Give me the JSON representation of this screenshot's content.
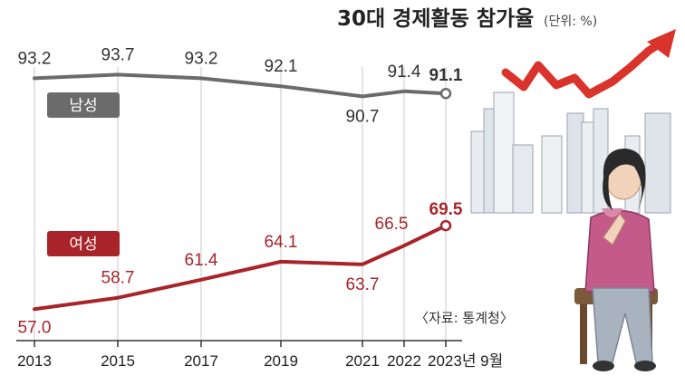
{
  "header": {
    "title": "30대 경제활동 참가율",
    "unit": "(단위: %)"
  },
  "source": "〈자료: 통계청〉",
  "colors": {
    "male": "#6b6b6b",
    "female": "#a8242a",
    "arrow": "#d9332b"
  },
  "chart_data": {
    "type": "line",
    "x_tick_labels": [
      "2013",
      "2015",
      "2017",
      "2019",
      "2021",
      "2022",
      "2023년 9월"
    ],
    "series": [
      {
        "name": "남성",
        "points": [
          {
            "x": "2013",
            "y": 93.2,
            "label": "93.2"
          },
          {
            "x": "2015",
            "y": 93.7,
            "label": "93.7"
          },
          {
            "x": "2017",
            "y": 93.2,
            "label": "93.2"
          },
          {
            "x": "2019",
            "y": 92.1,
            "label": "92.1"
          },
          {
            "x": "2021",
            "y": 90.7,
            "label": "90.7"
          },
          {
            "x": "2022",
            "y": 91.4,
            "label": "91.4"
          },
          {
            "x": "2023년 9월",
            "y": 91.1,
            "label": "91.1"
          }
        ]
      },
      {
        "name": "여성",
        "points": [
          {
            "x": "2013",
            "y": 57.0,
            "label": "57.0"
          },
          {
            "x": "2015",
            "y": 58.7,
            "label": "58.7"
          },
          {
            "x": "2017",
            "y": 61.4,
            "label": "61.4"
          },
          {
            "x": "2019",
            "y": 64.1,
            "label": "64.1"
          },
          {
            "x": "2021",
            "y": 63.7,
            "label": "63.7"
          },
          {
            "x": "2022",
            "y": 66.5,
            "label": "66.5"
          },
          {
            "x": "2023년 9월",
            "y": 69.5,
            "label": "69.5"
          }
        ]
      }
    ]
  }
}
